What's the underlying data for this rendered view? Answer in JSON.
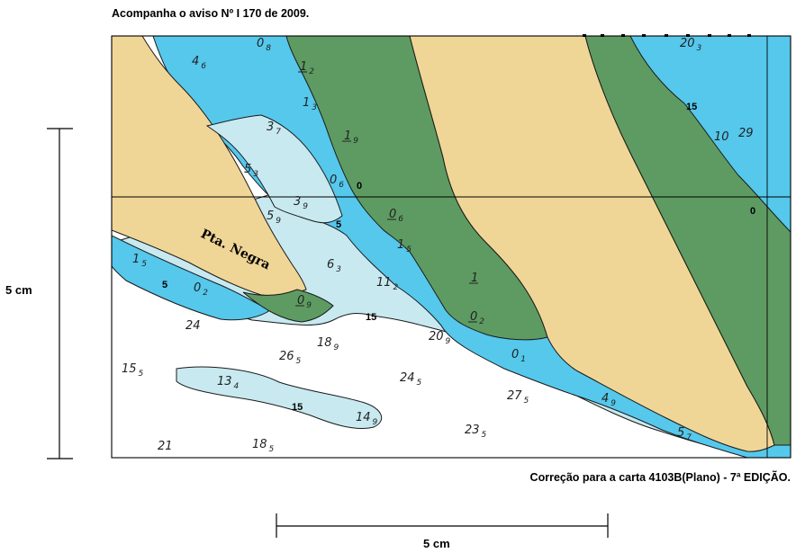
{
  "header": {
    "notice": "Acompanha o aviso Nº I 170 de 2009."
  },
  "footer": {
    "correction": "Correção para a carta  4103B(Plano) - 7ª EDIÇÃO."
  },
  "scale": {
    "vertical_label": "5 cm",
    "horizontal_label": "5 cm"
  },
  "map": {
    "place_name": "Pta. Negra",
    "colors": {
      "land": "#f0d696",
      "drying": "#5e9b62",
      "shallow": "#55c8ec",
      "medium": "#c8e9f0",
      "deep": "#ffffff",
      "outline": "#1a1a1a"
    },
    "contour_labels": [
      "0",
      "0",
      "5",
      "5",
      "15",
      "15",
      "15"
    ],
    "soundings": [
      {
        "main": "4",
        "sub": "6"
      },
      {
        "main": "0",
        "sub": "8"
      },
      {
        "main": "1",
        "sub": "2",
        "drying": true
      },
      {
        "main": "1",
        "sub": "3"
      },
      {
        "main": "3",
        "sub": "7"
      },
      {
        "main": "1",
        "sub": "9",
        "drying": true
      },
      {
        "main": "5",
        "sub": "3"
      },
      {
        "main": "0",
        "sub": "6"
      },
      {
        "main": "3",
        "sub": "9"
      },
      {
        "main": "5",
        "sub": "9"
      },
      {
        "main": "0",
        "sub": "6",
        "drying": true
      },
      {
        "main": "1",
        "sub": "5"
      },
      {
        "main": "6",
        "sub": "3"
      },
      {
        "main": "11",
        "sub": "2"
      },
      {
        "main": "1",
        "sub": "",
        "drying": true
      },
      {
        "main": "0",
        "sub": "2",
        "drying": true
      },
      {
        "main": "1",
        "sub": "5"
      },
      {
        "main": "0",
        "sub": "2"
      },
      {
        "main": "0",
        "sub": "9",
        "drying": true
      },
      {
        "main": "24",
        "sub": ""
      },
      {
        "main": "18",
        "sub": "9"
      },
      {
        "main": "20",
        "sub": "9"
      },
      {
        "main": "0",
        "sub": "1"
      },
      {
        "main": "26",
        "sub": "5"
      },
      {
        "main": "15",
        "sub": "5"
      },
      {
        "main": "13",
        "sub": "4"
      },
      {
        "main": "24",
        "sub": "5"
      },
      {
        "main": "27",
        "sub": "5"
      },
      {
        "main": "4",
        "sub": "9"
      },
      {
        "main": "14",
        "sub": "9"
      },
      {
        "main": "23",
        "sub": "5"
      },
      {
        "main": "5",
        "sub": "7"
      },
      {
        "main": "21",
        "sub": ""
      },
      {
        "main": "18",
        "sub": "5"
      },
      {
        "main": "20",
        "sub": "3"
      },
      {
        "main": "10",
        "sub": ""
      },
      {
        "main": "29",
        "sub": ""
      }
    ]
  }
}
